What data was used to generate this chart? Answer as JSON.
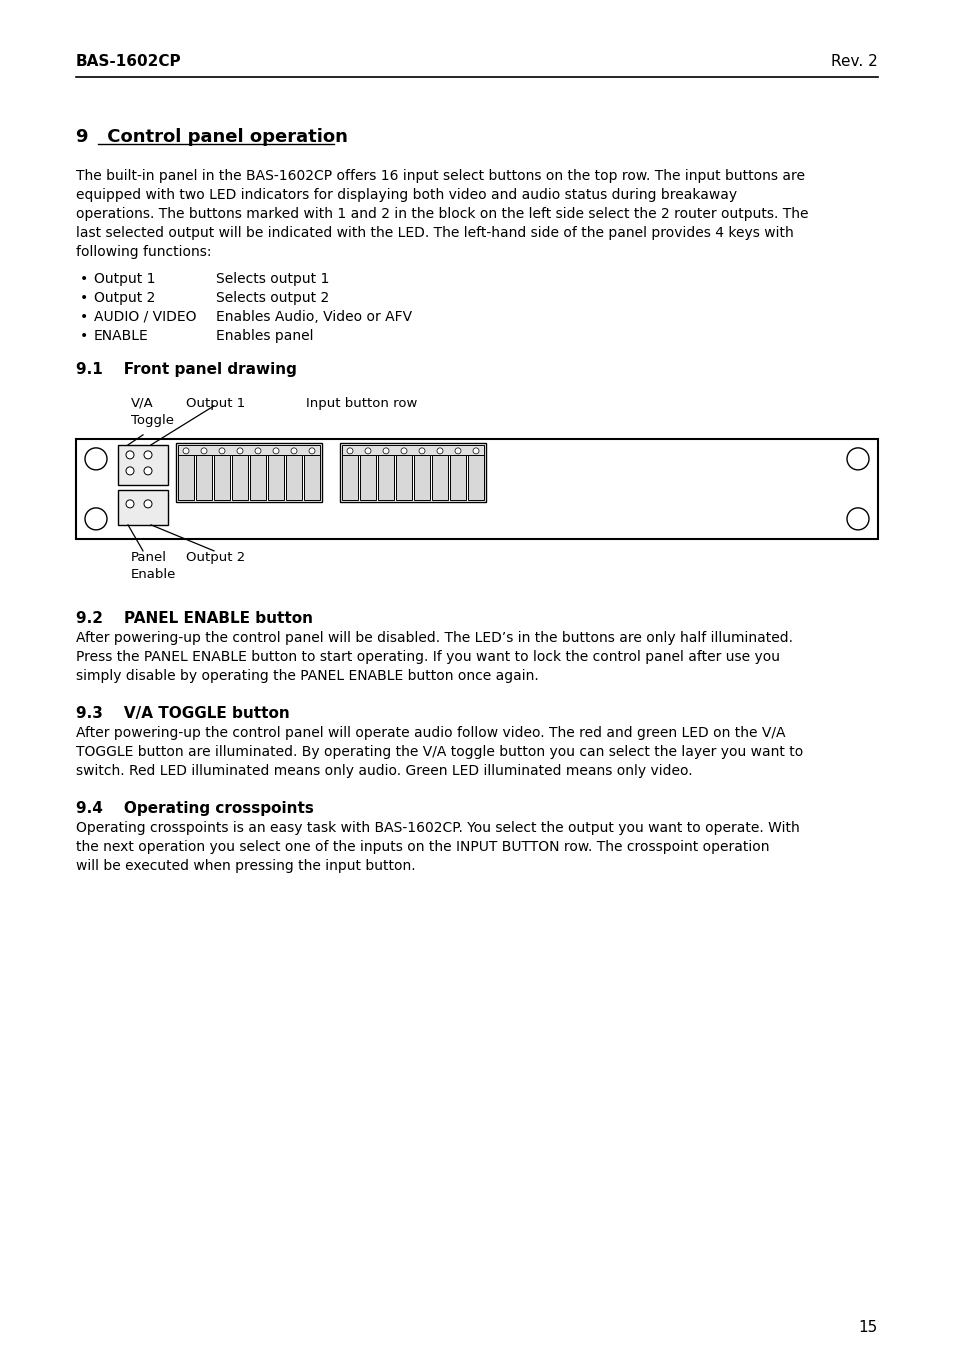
{
  "header_left": "BAS-1602CP",
  "header_right": "Rev. 2",
  "bg_color": "#ffffff",
  "text_color": "#000000",
  "section_title": "9   Control panel operation",
  "intro_text": "The built-in panel in the BAS-1602CP offers 16 input select buttons on the top row. The input buttons are\nequipped with two LED indicators for displaying both video and audio status during breakaway\noperations. The buttons marked with 1 and 2 in the block on the left side select the 2 router outputs. The\nlast selected output will be indicated with the LED. The left-hand side of the panel provides 4 keys with\nfollowing functions:",
  "bullets": [
    [
      "Output 1",
      "Selects output 1"
    ],
    [
      "Output 2",
      "Selects output 2"
    ],
    [
      "AUDIO / VIDEO",
      "Enables Audio, Video or AFV"
    ],
    [
      "ENABLE",
      "Enables panel"
    ]
  ],
  "sub_section_91": "9.1    Front panel drawing",
  "sub_section_92": "9.2    PANEL ENABLE button",
  "text_92": "After powering-up the control panel will be disabled. The LED’s in the buttons are only half illuminated.\nPress the PANEL ENABLE button to start operating. If you want to lock the control panel after use you\nsimply disable by operating the PANEL ENABLE button once again.",
  "sub_section_93": "9.3    V/A TOGGLE button",
  "text_93": "After powering-up the control panel will operate audio follow video. The red and green LED on the V/A\nTOGGLE button are illuminated. By operating the V/A toggle button you can select the layer you want to\nswitch. Red LED illuminated means only audio. Green LED illuminated means only video.",
  "sub_section_94": "9.4    Operating crosspoints",
  "text_94": "Operating crosspoints is an easy task with BAS-1602CP. You select the output you want to operate. With\nthe next operation you select one of the inputs on the INPUT BUTTON row. The crosspoint operation\nwill be executed when pressing the input button.",
  "page_number": "15"
}
